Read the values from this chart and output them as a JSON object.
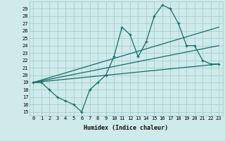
{
  "xlabel": "Humidex (Indice chaleur)",
  "background_color": "#ceeaea",
  "grid_color": "#a8cece",
  "line_color": "#1a6b6b",
  "xlim": [
    -0.5,
    23.5
  ],
  "ylim": [
    14.5,
    30.0
  ],
  "yticks": [
    15,
    16,
    17,
    18,
    19,
    20,
    21,
    22,
    23,
    24,
    25,
    26,
    27,
    28,
    29
  ],
  "xticks": [
    0,
    1,
    2,
    3,
    4,
    5,
    6,
    7,
    8,
    9,
    10,
    11,
    12,
    13,
    14,
    15,
    16,
    17,
    18,
    19,
    20,
    21,
    22,
    23
  ],
  "line1_x": [
    0,
    1,
    2,
    3,
    4,
    5,
    6,
    7,
    8,
    9,
    10,
    11,
    12,
    13,
    14,
    15,
    16,
    17,
    18,
    19,
    20,
    21,
    22,
    23
  ],
  "line1_y": [
    19.0,
    19.0,
    18.0,
    17.0,
    16.5,
    16.0,
    15.0,
    18.0,
    19.0,
    20.0,
    22.5,
    26.5,
    25.5,
    22.5,
    24.5,
    28.0,
    29.5,
    29.0,
    27.0,
    24.0,
    24.0,
    22.0,
    21.5,
    21.5
  ],
  "line2_x": [
    0,
    23
  ],
  "line2_y": [
    19.0,
    21.5
  ],
  "line3_x": [
    0,
    23
  ],
  "line3_y": [
    19.0,
    26.5
  ],
  "line4_x": [
    0,
    23
  ],
  "line4_y": [
    19.0,
    24.0
  ]
}
